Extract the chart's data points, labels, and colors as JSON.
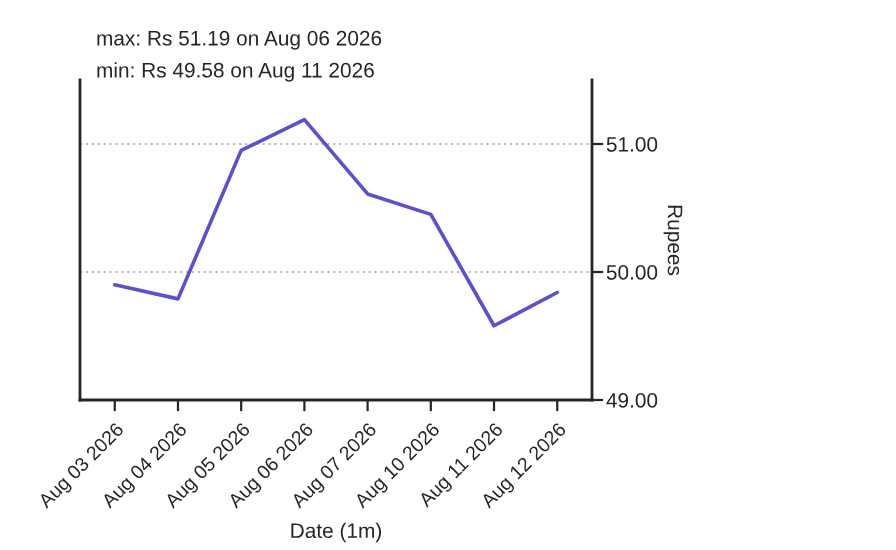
{
  "chart_data": {
    "type": "line",
    "annotations": [
      "max: Rs 51.19 on Aug 06 2026",
      "min: Rs 49.58 on Aug 11 2026"
    ],
    "xlabel": "Date (1m)",
    "ylabel": "Rupees",
    "categories": [
      "Aug 03 2026",
      "Aug 04 2026",
      "Aug 05 2026",
      "Aug 06 2026",
      "Aug 07 2026",
      "Aug 10 2026",
      "Aug 11 2026",
      "Aug 12 2026"
    ],
    "series": [
      {
        "color": "#5a50d0",
        "values": [
          49.9,
          49.79,
          50.95,
          51.19,
          50.61,
          50.45,
          49.58,
          49.84
        ]
      }
    ],
    "ylim": [
      49.0,
      51.5
    ],
    "yticks": [
      {
        "value": 49,
        "label": "49.00"
      },
      {
        "value": 50,
        "label": "50.00"
      },
      {
        "value": 51,
        "label": "51.00"
      }
    ],
    "grid": "y",
    "marker": "none",
    "line_style": "solid"
  }
}
